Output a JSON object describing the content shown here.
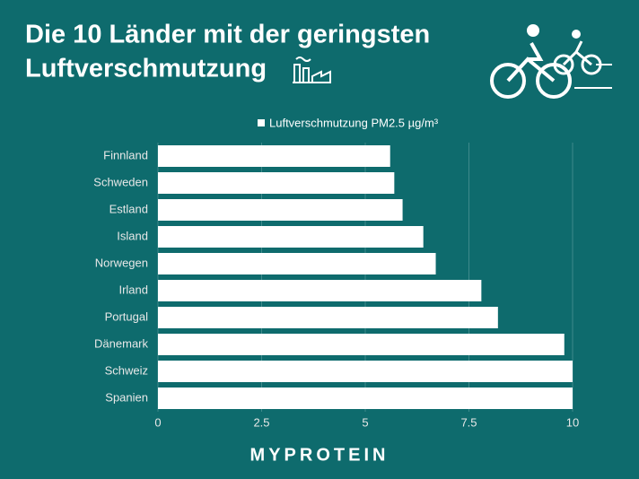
{
  "chart_data": {
    "type": "hbar",
    "title": [
      "Die 10 Länder mit der geringsten",
      "Luftverschmutzung"
    ],
    "categories": [
      "Finnland",
      "Schweden",
      "Estland",
      "Island",
      "Norwegen",
      "Irland",
      "Portugal",
      "Dänemark",
      "Schweiz",
      "Spanien"
    ],
    "series": [
      {
        "name": "Luftverschmutzung PM2.5 µg/m³",
        "color": "#ffffff",
        "values": [
          5.6,
          5.7,
          5.9,
          6.4,
          6.7,
          7.8,
          8.2,
          9.8,
          10.0,
          10.0
        ]
      }
    ],
    "xlim": [
      0,
      10
    ],
    "xticks": [
      0,
      2.5,
      5,
      7.5,
      10
    ],
    "grid": true,
    "brand": "MYPROTEIN"
  }
}
